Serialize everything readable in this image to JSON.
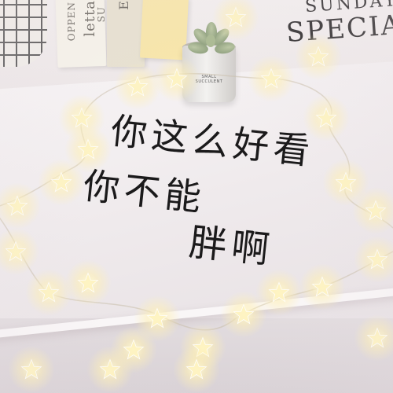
{
  "scene": {
    "background_props": {
      "book_spines": [
        "letta",
        "OPPEN",
        "SU",
        "E"
      ],
      "pot_label": "SMALL SUCCULENT",
      "sign_lines": [
        "SUNDAY",
        "SPECIAL"
      ]
    },
    "caption_lines": [
      "你这么好看",
      "你不能胖啊"
    ],
    "caption_line_split": [
      "你这么好看",
      "你不能胖啊"
    ],
    "lights": {
      "color": "#fff4c2",
      "icon": "star-light-icon"
    }
  }
}
